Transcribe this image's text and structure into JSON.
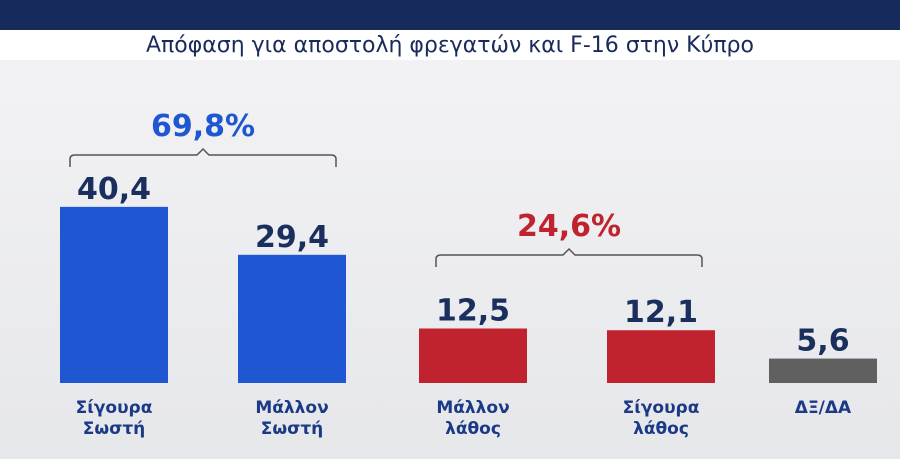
{
  "chart_data": {
    "type": "bar",
    "title": "Απόφαση για αποστολή φρεγατών και F-16 στην Κύπρο",
    "categories": [
      "Σίγουρα Σωστή",
      "Μάλλον Σωστή",
      "Μάλλον λάθος",
      "Σίγουρα λάθος",
      "ΔΞ/ΔΑ"
    ],
    "values": [
      40.4,
      29.4,
      12.5,
      12.1,
      5.6
    ],
    "value_labels": [
      "40,4",
      "29,4",
      "12,5",
      "12,1",
      "5,6"
    ],
    "colors": [
      "#1f56d1",
      "#1f56d1",
      "#c0222f",
      "#c0222f",
      "#606060"
    ],
    "annotations": [
      "69,8%",
      "24,6%"
    ]
  }
}
